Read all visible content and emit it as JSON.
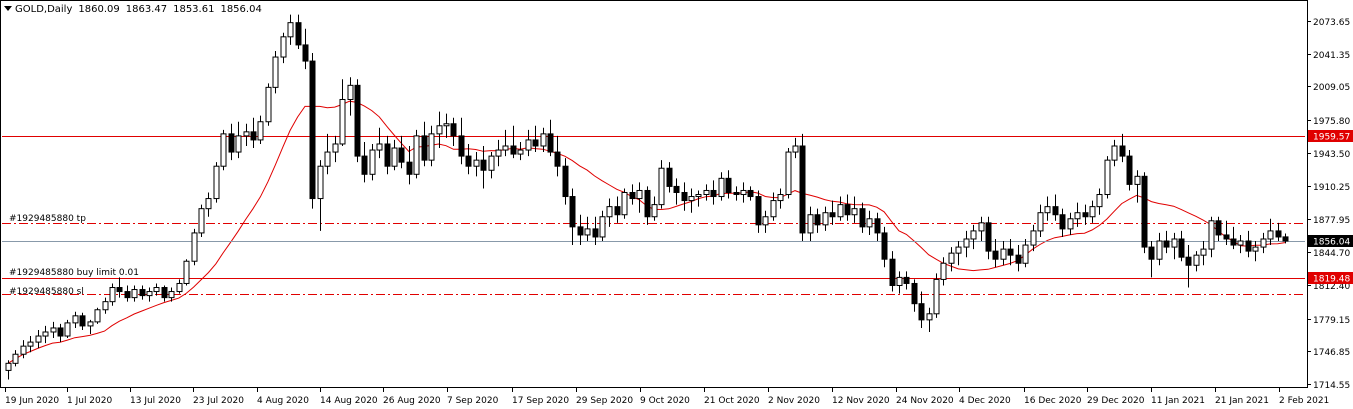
{
  "header": {
    "symbol": "GOLD,Daily",
    "open": "1860.09",
    "high": "1863.47",
    "low": "1853.61",
    "close": "1856.04"
  },
  "orders": {
    "tp_label": "#1929485880 tp",
    "limit_label": "#1929485880 buy limit 0.01",
    "sl_label": "#1929485880 sl"
  },
  "colors": {
    "bull": "#ffffff",
    "bear": "#000000",
    "ma": "#e00000",
    "order_line": "#e00000",
    "current_price_line": "#8899aa",
    "tag_bg": "#e00000"
  },
  "chart_data": {
    "type": "candlestick",
    "ylim": [
      1714.55,
      2083.0
    ],
    "y_ticks": [
      "2073.65",
      "2041.35",
      "2009.05",
      "1975.80",
      "1943.50",
      "1910.25",
      "1877.95",
      "1844.70",
      "1812.40",
      "1779.15",
      "1746.85",
      "1714.55"
    ],
    "x_ticks": [
      "19 Jun 2020",
      "1 Jul 2020",
      "13 Jul 2020",
      "23 Jul 2020",
      "4 Aug 2020",
      "14 Aug 2020",
      "26 Aug 2020",
      "7 Sep 2020",
      "17 Sep 2020",
      "29 Sep 2020",
      "9 Oct 2020",
      "21 Oct 2020",
      "2 Nov 2020",
      "12 Nov 2020",
      "24 Nov 2020",
      "4 Dec 2020",
      "16 Dec 2020",
      "29 Dec 2020",
      "11 Jan 2021",
      "21 Jan 2021",
      "2 Feb 2021"
    ],
    "price_tags": [
      {
        "name": "resistance",
        "value": 1959.57,
        "label": "1959.57",
        "style": "solid"
      },
      {
        "name": "current",
        "value": 1856.04,
        "label": "1856.04",
        "style": "current"
      },
      {
        "name": "buy-limit",
        "value": 1819.48,
        "label": "1819.48",
        "style": "solid"
      }
    ],
    "order_lines": [
      {
        "name": "tp",
        "value": 1874.0,
        "style": "dashdot"
      },
      {
        "name": "sl",
        "value": 1804.0,
        "style": "dashdot"
      }
    ],
    "candles": [
      [
        1728,
        1738,
        1719,
        1735
      ],
      [
        1735,
        1748,
        1732,
        1744
      ],
      [
        1744,
        1758,
        1740,
        1752
      ],
      [
        1752,
        1762,
        1746,
        1756
      ],
      [
        1756,
        1768,
        1750,
        1762
      ],
      [
        1762,
        1772,
        1755,
        1766
      ],
      [
        1766,
        1776,
        1760,
        1770
      ],
      [
        1770,
        1774,
        1756,
        1762
      ],
      [
        1762,
        1778,
        1760,
        1775
      ],
      [
        1775,
        1786,
        1770,
        1782
      ],
      [
        1782,
        1785,
        1768,
        1772
      ],
      [
        1772,
        1778,
        1764,
        1776
      ],
      [
        1776,
        1790,
        1774,
        1788
      ],
      [
        1788,
        1800,
        1784,
        1796
      ],
      [
        1796,
        1814,
        1792,
        1810
      ],
      [
        1810,
        1820,
        1800,
        1806
      ],
      [
        1806,
        1812,
        1796,
        1800
      ],
      [
        1800,
        1812,
        1796,
        1808
      ],
      [
        1808,
        1812,
        1798,
        1802
      ],
      [
        1802,
        1810,
        1796,
        1806
      ],
      [
        1806,
        1814,
        1802,
        1810
      ],
      [
        1810,
        1812,
        1796,
        1800
      ],
      [
        1800,
        1810,
        1796,
        1806
      ],
      [
        1806,
        1818,
        1804,
        1814
      ],
      [
        1814,
        1838,
        1812,
        1836
      ],
      [
        1836,
        1868,
        1832,
        1864
      ],
      [
        1864,
        1892,
        1860,
        1888
      ],
      [
        1888,
        1904,
        1880,
        1898
      ],
      [
        1898,
        1934,
        1894,
        1930
      ],
      [
        1930,
        1966,
        1926,
        1962
      ],
      [
        1962,
        1972,
        1936,
        1944
      ],
      [
        1944,
        1974,
        1938,
        1960
      ],
      [
        1960,
        1972,
        1950,
        1964
      ],
      [
        1964,
        1978,
        1948,
        1956
      ],
      [
        1956,
        1980,
        1952,
        1974
      ],
      [
        1974,
        2012,
        1970,
        2008
      ],
      [
        2008,
        2044,
        2002,
        2038
      ],
      [
        2038,
        2062,
        2032,
        2058
      ],
      [
        2058,
        2080,
        2050,
        2072
      ],
      [
        2072,
        2080,
        2046,
        2050
      ],
      [
        2050,
        2066,
        2026,
        2034
      ],
      [
        2034,
        2042,
        1888,
        1898
      ],
      [
        1898,
        1936,
        1866,
        1930
      ],
      [
        1930,
        1962,
        1922,
        1944
      ],
      [
        1944,
        1960,
        1934,
        1952
      ],
      [
        1952,
        2016,
        1950,
        1996
      ],
      [
        1996,
        2018,
        1980,
        2010
      ],
      [
        2010,
        2016,
        1934,
        1940
      ],
      [
        1940,
        1954,
        1914,
        1922
      ],
      [
        1922,
        1952,
        1916,
        1946
      ],
      [
        1946,
        1968,
        1938,
        1952
      ],
      [
        1952,
        1960,
        1922,
        1930
      ],
      [
        1930,
        1956,
        1926,
        1948
      ],
      [
        1948,
        1960,
        1928,
        1934
      ],
      [
        1934,
        1950,
        1912,
        1922
      ],
      [
        1922,
        1966,
        1918,
        1960
      ],
      [
        1960,
        1974,
        1930,
        1936
      ],
      [
        1936,
        1970,
        1930,
        1962
      ],
      [
        1962,
        1984,
        1948,
        1970
      ],
      [
        1970,
        1982,
        1958,
        1972
      ],
      [
        1972,
        1978,
        1950,
        1960
      ],
      [
        1960,
        1978,
        1932,
        1940
      ],
      [
        1940,
        1952,
        1922,
        1930
      ],
      [
        1930,
        1944,
        1920,
        1936
      ],
      [
        1936,
        1950,
        1908,
        1926
      ],
      [
        1926,
        1944,
        1918,
        1940
      ],
      [
        1940,
        1956,
        1930,
        1946
      ],
      [
        1946,
        1966,
        1940,
        1950
      ],
      [
        1950,
        1970,
        1938,
        1942
      ],
      [
        1942,
        1954,
        1936,
        1946
      ],
      [
        1946,
        1966,
        1940,
        1956
      ],
      [
        1956,
        1970,
        1944,
        1950
      ],
      [
        1950,
        1968,
        1944,
        1962
      ],
      [
        1962,
        1976,
        1940,
        1944
      ],
      [
        1944,
        1960,
        1920,
        1930
      ],
      [
        1930,
        1938,
        1892,
        1900
      ],
      [
        1900,
        1908,
        1852,
        1870
      ],
      [
        1870,
        1882,
        1852,
        1862
      ],
      [
        1862,
        1880,
        1856,
        1868
      ],
      [
        1868,
        1880,
        1852,
        1860
      ],
      [
        1860,
        1886,
        1856,
        1880
      ],
      [
        1880,
        1898,
        1870,
        1890
      ],
      [
        1890,
        1900,
        1874,
        1882
      ],
      [
        1882,
        1908,
        1878,
        1904
      ],
      [
        1904,
        1912,
        1892,
        1898
      ],
      [
        1898,
        1914,
        1884,
        1906
      ],
      [
        1906,
        1910,
        1872,
        1880
      ],
      [
        1880,
        1900,
        1876,
        1892
      ],
      [
        1892,
        1936,
        1888,
        1928
      ],
      [
        1928,
        1934,
        1904,
        1910
      ],
      [
        1910,
        1918,
        1892,
        1904
      ],
      [
        1904,
        1914,
        1886,
        1896
      ],
      [
        1896,
        1908,
        1884,
        1900
      ],
      [
        1900,
        1906,
        1890,
        1902
      ],
      [
        1902,
        1912,
        1896,
        1906
      ],
      [
        1906,
        1916,
        1892,
        1900
      ],
      [
        1900,
        1924,
        1896,
        1918
      ],
      [
        1918,
        1926,
        1898,
        1904
      ],
      [
        1904,
        1910,
        1896,
        1902
      ],
      [
        1902,
        1914,
        1894,
        1906
      ],
      [
        1906,
        1910,
        1896,
        1900
      ],
      [
        1900,
        1906,
        1864,
        1872
      ],
      [
        1872,
        1886,
        1864,
        1880
      ],
      [
        1880,
        1904,
        1876,
        1896
      ],
      [
        1896,
        1908,
        1888,
        1902
      ],
      [
        1902,
        1948,
        1898,
        1944
      ],
      [
        1944,
        1958,
        1938,
        1950
      ],
      [
        1950,
        1962,
        1856,
        1864
      ],
      [
        1864,
        1890,
        1856,
        1882
      ],
      [
        1882,
        1888,
        1864,
        1872
      ],
      [
        1872,
        1890,
        1866,
        1884
      ],
      [
        1884,
        1896,
        1872,
        1880
      ],
      [
        1880,
        1900,
        1876,
        1892
      ],
      [
        1892,
        1902,
        1876,
        1882
      ],
      [
        1882,
        1900,
        1874,
        1888
      ],
      [
        1888,
        1894,
        1864,
        1870
      ],
      [
        1870,
        1886,
        1862,
        1878
      ],
      [
        1878,
        1884,
        1856,
        1864
      ],
      [
        1864,
        1870,
        1830,
        1838
      ],
      [
        1838,
        1846,
        1806,
        1812
      ],
      [
        1812,
        1826,
        1804,
        1820
      ],
      [
        1820,
        1826,
        1808,
        1814
      ],
      [
        1814,
        1818,
        1786,
        1794
      ],
      [
        1794,
        1806,
        1770,
        1778
      ],
      [
        1778,
        1790,
        1766,
        1784
      ],
      [
        1784,
        1824,
        1780,
        1818
      ],
      [
        1818,
        1840,
        1812,
        1834
      ],
      [
        1834,
        1850,
        1826,
        1844
      ],
      [
        1844,
        1856,
        1832,
        1850
      ],
      [
        1850,
        1866,
        1840,
        1858
      ],
      [
        1858,
        1872,
        1848,
        1866
      ],
      [
        1866,
        1880,
        1856,
        1874
      ],
      [
        1874,
        1880,
        1838,
        1846
      ],
      [
        1846,
        1858,
        1830,
        1838
      ],
      [
        1838,
        1856,
        1832,
        1848
      ],
      [
        1848,
        1858,
        1832,
        1842
      ],
      [
        1842,
        1852,
        1826,
        1834
      ],
      [
        1834,
        1858,
        1830,
        1852
      ],
      [
        1852,
        1872,
        1846,
        1866
      ],
      [
        1866,
        1892,
        1860,
        1884
      ],
      [
        1884,
        1900,
        1876,
        1890
      ],
      [
        1890,
        1902,
        1876,
        1882
      ],
      [
        1882,
        1888,
        1860,
        1868
      ],
      [
        1868,
        1884,
        1862,
        1878
      ],
      [
        1878,
        1894,
        1870,
        1884
      ],
      [
        1884,
        1892,
        1872,
        1880
      ],
      [
        1880,
        1896,
        1874,
        1890
      ],
      [
        1890,
        1908,
        1882,
        1902
      ],
      [
        1902,
        1940,
        1898,
        1936
      ],
      [
        1936,
        1956,
        1930,
        1950
      ],
      [
        1950,
        1962,
        1934,
        1940
      ],
      [
        1940,
        1946,
        1906,
        1912
      ],
      [
        1912,
        1926,
        1894,
        1920
      ],
      [
        1920,
        1924,
        1844,
        1850
      ],
      [
        1850,
        1856,
        1820,
        1838
      ],
      [
        1838,
        1864,
        1832,
        1856
      ],
      [
        1856,
        1866,
        1844,
        1850
      ],
      [
        1850,
        1864,
        1838,
        1858
      ],
      [
        1858,
        1866,
        1836,
        1840
      ],
      [
        1840,
        1852,
        1810,
        1832
      ],
      [
        1832,
        1846,
        1826,
        1842
      ],
      [
        1842,
        1856,
        1832,
        1848
      ],
      [
        1848,
        1880,
        1840,
        1876
      ],
      [
        1876,
        1880,
        1856,
        1862
      ],
      [
        1862,
        1876,
        1852,
        1858
      ],
      [
        1858,
        1870,
        1848,
        1852
      ],
      [
        1852,
        1862,
        1844,
        1856
      ],
      [
        1856,
        1866,
        1840,
        1846
      ],
      [
        1846,
        1856,
        1836,
        1850
      ],
      [
        1850,
        1864,
        1844,
        1858
      ],
      [
        1858,
        1878,
        1852,
        1866
      ],
      [
        1866,
        1874,
        1856,
        1860
      ],
      [
        1860.09,
        1863.47,
        1853.61,
        1856.04
      ]
    ]
  }
}
